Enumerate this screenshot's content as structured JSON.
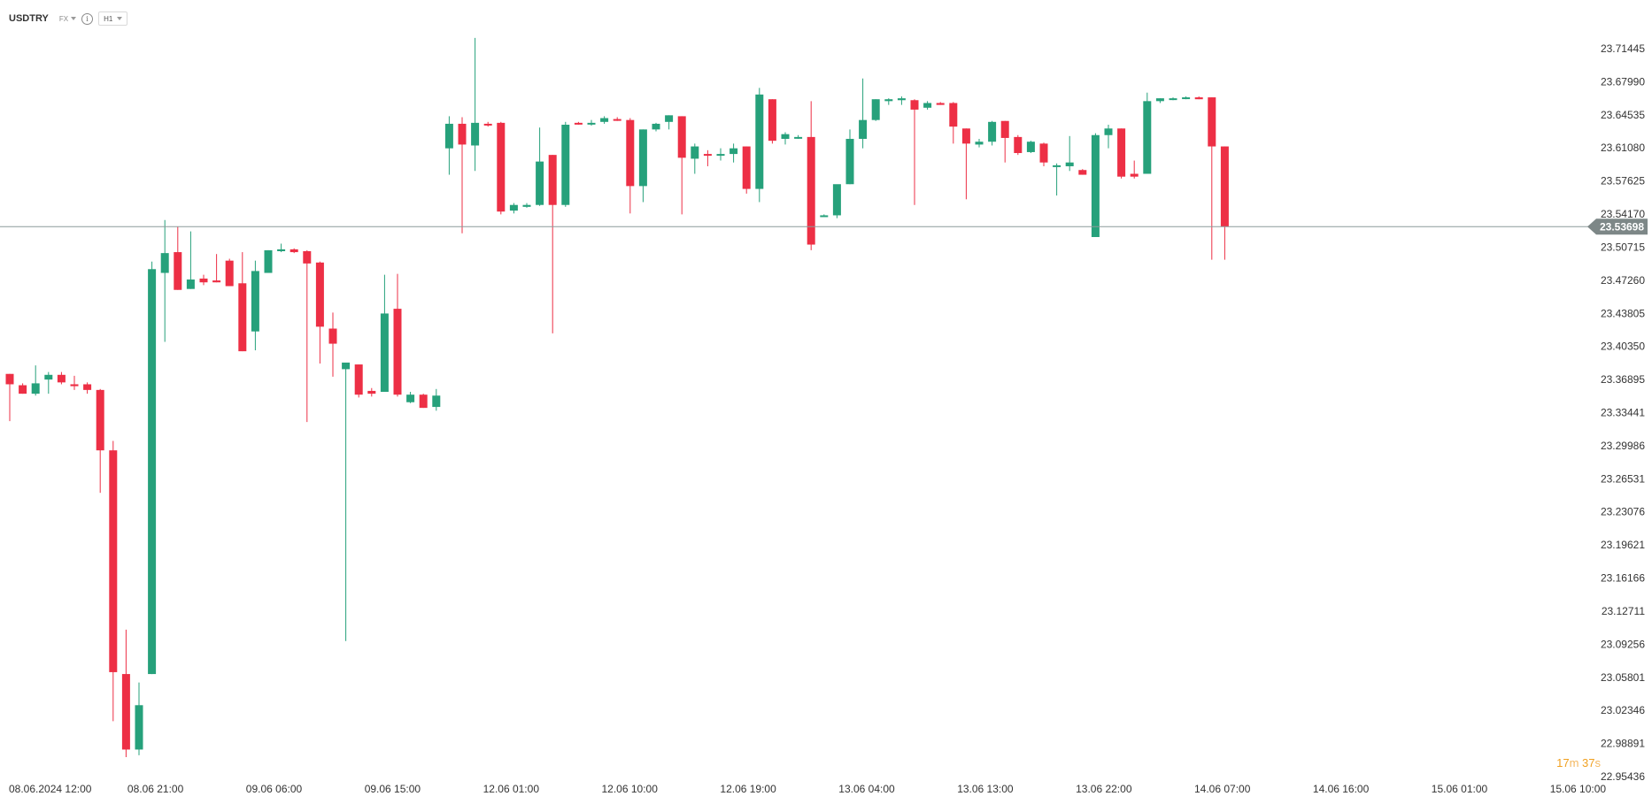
{
  "header": {
    "symbol": "USDTRY",
    "market": "FX",
    "info_icon": "info-circle-icon",
    "timeframe": "H1"
  },
  "countdown": {
    "minutes": "17",
    "minutes_unit": "m",
    "seconds": "37",
    "seconds_unit": "s"
  },
  "colors": {
    "up": "#26a17b",
    "down": "#ed2f45",
    "price_line": "#8c9a9a",
    "price_badge": "#7d8787"
  },
  "chart_data": {
    "type": "candlestick",
    "ylim": [
      22.95436,
      23.7256
    ],
    "y_ticks": [
      "23.71445",
      "23.67990",
      "23.64535",
      "23.61080",
      "23.57625",
      "23.54170",
      "23.50715",
      "23.47260",
      "23.43805",
      "23.40350",
      "23.36895",
      "23.33441",
      "23.29986",
      "23.26531",
      "23.23076",
      "23.19621",
      "23.16166",
      "23.12711",
      "23.09256",
      "23.05801",
      "23.02346",
      "22.98891",
      "22.95436"
    ],
    "x_ticks": [
      "08.06.2024 12:00",
      "08.06 21:00",
      "09.06 06:00",
      "09.06 15:00",
      "12.06 01:00",
      "12.06 10:00",
      "12.06 19:00",
      "13.06 04:00",
      "13.06 13:00",
      "13.06 22:00",
      "14.06 07:00",
      "14.06 16:00",
      "15.06 01:00",
      "15.06 10:00"
    ],
    "current_price": "23.53698",
    "candles": [
      {
        "o": 23.381,
        "h": 23.381,
        "l": 23.331,
        "c": 23.37
      },
      {
        "o": 23.369,
        "h": 23.371,
        "l": 23.36,
        "c": 23.36
      },
      {
        "o": 23.36,
        "h": 23.39,
        "l": 23.358,
        "c": 23.371
      },
      {
        "o": 23.375,
        "h": 23.383,
        "l": 23.36,
        "c": 23.38
      },
      {
        "o": 23.38,
        "h": 23.383,
        "l": 23.37,
        "c": 23.372
      },
      {
        "o": 23.37,
        "h": 23.379,
        "l": 23.364,
        "c": 23.368
      },
      {
        "o": 23.37,
        "h": 23.372,
        "l": 23.36,
        "c": 23.364
      },
      {
        "o": 23.364,
        "h": 23.365,
        "l": 23.255,
        "c": 23.3
      },
      {
        "o": 23.3,
        "h": 23.31,
        "l": 23.013,
        "c": 23.065
      },
      {
        "o": 23.063,
        "h": 23.11,
        "l": 22.975,
        "c": 22.983
      },
      {
        "o": 22.983,
        "h": 23.054,
        "l": 22.977,
        "c": 23.03
      },
      {
        "o": 23.063,
        "h": 23.5,
        "l": 23.063,
        "c": 23.492
      },
      {
        "o": 23.488,
        "h": 23.544,
        "l": 23.415,
        "c": 23.509
      },
      {
        "o": 23.51,
        "h": 23.537,
        "l": 23.47,
        "c": 23.47
      },
      {
        "o": 23.471,
        "h": 23.532,
        "l": 23.471,
        "c": 23.481
      },
      {
        "o": 23.482,
        "h": 23.486,
        "l": 23.475,
        "c": 23.478
      },
      {
        "o": 23.48,
        "h": 23.508,
        "l": 23.478,
        "c": 23.478
      },
      {
        "o": 23.501,
        "h": 23.503,
        "l": 23.474,
        "c": 23.474
      },
      {
        "o": 23.477,
        "h": 23.51,
        "l": 23.405,
        "c": 23.405
      },
      {
        "o": 23.426,
        "h": 23.501,
        "l": 23.406,
        "c": 23.49
      },
      {
        "o": 23.488,
        "h": 23.512,
        "l": 23.488,
        "c": 23.512
      },
      {
        "o": 23.511,
        "h": 23.519,
        "l": 23.51,
        "c": 23.513
      },
      {
        "o": 23.513,
        "h": 23.514,
        "l": 23.509,
        "c": 23.51
      },
      {
        "o": 23.511,
        "h": 23.512,
        "l": 23.33,
        "c": 23.498
      },
      {
        "o": 23.499,
        "h": 23.5,
        "l": 23.392,
        "c": 23.431
      },
      {
        "o": 23.429,
        "h": 23.446,
        "l": 23.378,
        "c": 23.413
      },
      {
        "o": 23.386,
        "h": 23.389,
        "l": 23.098,
        "c": 23.393
      },
      {
        "o": 23.391,
        "h": 23.391,
        "l": 23.356,
        "c": 23.359
      },
      {
        "o": 23.363,
        "h": 23.366,
        "l": 23.357,
        "c": 23.36
      },
      {
        "o": 23.362,
        "h": 23.486,
        "l": 23.362,
        "c": 23.445
      },
      {
        "o": 23.45,
        "h": 23.487,
        "l": 23.357,
        "c": 23.359
      },
      {
        "o": 23.351,
        "h": 23.362,
        "l": 23.35,
        "c": 23.359
      },
      {
        "o": 23.359,
        "h": 23.36,
        "l": 23.345,
        "c": 23.345
      },
      {
        "o": 23.346,
        "h": 23.365,
        "l": 23.342,
        "c": 23.358
      },
      {
        "o": 23.62,
        "h": 23.654,
        "l": 23.592,
        "c": 23.646
      },
      {
        "o": 23.646,
        "h": 23.653,
        "l": 23.53,
        "c": 23.624
      },
      {
        "o": 23.623,
        "h": 23.737,
        "l": 23.596,
        "c": 23.647
      },
      {
        "o": 23.646,
        "h": 23.648,
        "l": 23.643,
        "c": 23.645
      },
      {
        "o": 23.647,
        "h": 23.648,
        "l": 23.55,
        "c": 23.553
      },
      {
        "o": 23.554,
        "h": 23.562,
        "l": 23.551,
        "c": 23.56
      },
      {
        "o": 23.558,
        "h": 23.562,
        "l": 23.557,
        "c": 23.56
      },
      {
        "o": 23.56,
        "h": 23.642,
        "l": 23.559,
        "c": 23.606
      },
      {
        "o": 23.613,
        "h": 23.613,
        "l": 23.424,
        "c": 23.56
      },
      {
        "o": 23.56,
        "h": 23.648,
        "l": 23.558,
        "c": 23.645
      },
      {
        "o": 23.647,
        "h": 23.648,
        "l": 23.645,
        "c": 23.646
      },
      {
        "o": 23.646,
        "h": 23.65,
        "l": 23.644,
        "c": 23.647
      },
      {
        "o": 23.648,
        "h": 23.654,
        "l": 23.646,
        "c": 23.652
      },
      {
        "o": 23.651,
        "h": 23.653,
        "l": 23.649,
        "c": 23.65
      },
      {
        "o": 23.65,
        "h": 23.652,
        "l": 23.551,
        "c": 23.58
      },
      {
        "o": 23.58,
        "h": 23.64,
        "l": 23.563,
        "c": 23.64
      },
      {
        "o": 23.64,
        "h": 23.647,
        "l": 23.638,
        "c": 23.646
      },
      {
        "o": 23.648,
        "h": 23.655,
        "l": 23.64,
        "c": 23.655
      },
      {
        "o": 23.654,
        "h": 23.654,
        "l": 23.55,
        "c": 23.61
      },
      {
        "o": 23.609,
        "h": 23.625,
        "l": 23.593,
        "c": 23.622
      },
      {
        "o": 23.614,
        "h": 23.618,
        "l": 23.601,
        "c": 23.613
      },
      {
        "o": 23.614,
        "h": 23.62,
        "l": 23.607,
        "c": 23.614
      },
      {
        "o": 23.614,
        "h": 23.625,
        "l": 23.605,
        "c": 23.62
      },
      {
        "o": 23.622,
        "h": 23.622,
        "l": 23.572,
        "c": 23.577
      },
      {
        "o": 23.577,
        "h": 23.684,
        "l": 23.563,
        "c": 23.677
      },
      {
        "o": 23.672,
        "h": 23.672,
        "l": 23.625,
        "c": 23.628
      },
      {
        "o": 23.63,
        "h": 23.637,
        "l": 23.624,
        "c": 23.635
      },
      {
        "o": 23.632,
        "h": 23.634,
        "l": 23.63,
        "c": 23.632
      },
      {
        "o": 23.632,
        "h": 23.67,
        "l": 23.512,
        "c": 23.518
      },
      {
        "o": 23.549,
        "h": 23.55,
        "l": 23.548,
        "c": 23.549
      },
      {
        "o": 23.549,
        "h": 23.58,
        "l": 23.546,
        "c": 23.582
      },
      {
        "o": 23.582,
        "h": 23.64,
        "l": 23.582,
        "c": 23.63
      },
      {
        "o": 23.63,
        "h": 23.694,
        "l": 23.62,
        "c": 23.65
      },
      {
        "o": 23.65,
        "h": 23.672,
        "l": 23.649,
        "c": 23.672
      },
      {
        "o": 23.67,
        "h": 23.673,
        "l": 23.666,
        "c": 23.672
      },
      {
        "o": 23.671,
        "h": 23.675,
        "l": 23.666,
        "c": 23.673
      },
      {
        "o": 23.671,
        "h": 23.672,
        "l": 23.56,
        "c": 23.661
      },
      {
        "o": 23.663,
        "h": 23.67,
        "l": 23.661,
        "c": 23.668
      },
      {
        "o": 23.668,
        "h": 23.669,
        "l": 23.666,
        "c": 23.666
      },
      {
        "o": 23.668,
        "h": 23.669,
        "l": 23.625,
        "c": 23.643
      },
      {
        "o": 23.641,
        "h": 23.641,
        "l": 23.566,
        "c": 23.625
      },
      {
        "o": 23.624,
        "h": 23.63,
        "l": 23.621,
        "c": 23.627
      },
      {
        "o": 23.627,
        "h": 23.649,
        "l": 23.623,
        "c": 23.648
      },
      {
        "o": 23.649,
        "h": 23.649,
        "l": 23.605,
        "c": 23.631
      },
      {
        "o": 23.632,
        "h": 23.634,
        "l": 23.613,
        "c": 23.615
      },
      {
        "o": 23.616,
        "h": 23.628,
        "l": 23.615,
        "c": 23.627
      },
      {
        "o": 23.625,
        "h": 23.626,
        "l": 23.601,
        "c": 23.605
      },
      {
        "o": 23.601,
        "h": 23.604,
        "l": 23.57,
        "c": 23.602
      },
      {
        "o": 23.601,
        "h": 23.633,
        "l": 23.596,
        "c": 23.605
      },
      {
        "o": 23.597,
        "h": 23.598,
        "l": 23.592,
        "c": 23.592
      },
      {
        "o": 23.526,
        "h": 23.636,
        "l": 23.526,
        "c": 23.634
      },
      {
        "o": 23.634,
        "h": 23.645,
        "l": 23.62,
        "c": 23.641
      },
      {
        "o": 23.641,
        "h": 23.641,
        "l": 23.588,
        "c": 23.59
      },
      {
        "o": 23.593,
        "h": 23.607,
        "l": 23.588,
        "c": 23.59
      },
      {
        "o": 23.593,
        "h": 23.679,
        "l": 23.593,
        "c": 23.67
      },
      {
        "o": 23.67,
        "h": 23.673,
        "l": 23.668,
        "c": 23.673
      },
      {
        "o": 23.672,
        "h": 23.674,
        "l": 23.671,
        "c": 23.673
      },
      {
        "o": 23.673,
        "h": 23.675,
        "l": 23.672,
        "c": 23.674
      },
      {
        "o": 23.674,
        "h": 23.675,
        "l": 23.672,
        "c": 23.672
      },
      {
        "o": 23.674,
        "h": 23.674,
        "l": 23.502,
        "c": 23.622
      },
      {
        "o": 23.622,
        "h": 23.622,
        "l": 23.502,
        "c": 23.537
      }
    ]
  }
}
